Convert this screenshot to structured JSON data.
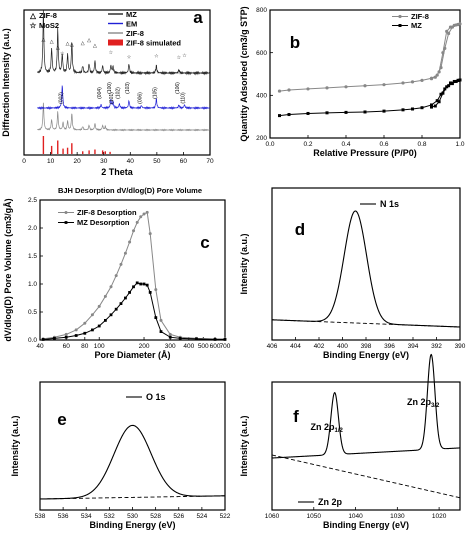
{
  "figure": {
    "panel_letters": [
      "a",
      "b",
      "c",
      "d",
      "e",
      "f"
    ]
  },
  "chart_data": [
    {
      "panel": "a",
      "type": "line",
      "xlabel": "2 Theta",
      "ylabel": "Diffraction Intensity (a.u.)",
      "xlim": [
        0,
        70
      ],
      "xticks": [
        "0",
        "10",
        "20",
        "30",
        "40",
        "50",
        "60",
        "70"
      ],
      "legend": [
        {
          "name": "MZ",
          "color": "#222222",
          "style": "line"
        },
        {
          "name": "EM",
          "color": "#1f1fd6",
          "style": "line"
        },
        {
          "name": "ZIF-8",
          "color": "#888888",
          "style": "line"
        },
        {
          "name": "ZIF-8 simulated",
          "color": "#e02020",
          "style": "fill"
        }
      ],
      "marker_legend": [
        {
          "symbol": "△",
          "name": "ZIF-8",
          "color": "#e02020"
        },
        {
          "symbol": "☆",
          "name": "MoS2",
          "color": "#000000"
        }
      ],
      "hkl_labels": [
        {
          "x": 14.4,
          "text": "(002)"
        },
        {
          "x": 29.0,
          "text": "(004)"
        },
        {
          "x": 32.7,
          "text": "(100)"
        },
        {
          "x": 33.5,
          "text": "(101)"
        },
        {
          "x": 35.9,
          "text": "(102)"
        },
        {
          "x": 39.5,
          "text": "(103)"
        },
        {
          "x": 44.2,
          "text": "(006)"
        },
        {
          "x": 49.8,
          "text": "(105)"
        },
        {
          "x": 58.3,
          "text": "(106)"
        },
        {
          "x": 60.4,
          "text": "(110)"
        }
      ],
      "simulated_peaks": [
        {
          "x": 7.3,
          "h": 1.0
        },
        {
          "x": 10.4,
          "h": 0.45
        },
        {
          "x": 12.7,
          "h": 0.75
        },
        {
          "x": 14.7,
          "h": 0.3
        },
        {
          "x": 16.4,
          "h": 0.35
        },
        {
          "x": 18.0,
          "h": 0.6
        },
        {
          "x": 22.1,
          "h": 0.15
        },
        {
          "x": 24.5,
          "h": 0.2
        },
        {
          "x": 26.7,
          "h": 0.25
        },
        {
          "x": 29.6,
          "h": 0.2
        },
        {
          "x": 30.6,
          "h": 0.15
        },
        {
          "x": 32.4,
          "h": 0.12
        }
      ],
      "series": [
        {
          "name": "ZIF-8",
          "peaks": [
            {
              "x": 7.3,
              "h": 0.9
            },
            {
              "x": 10.4,
              "h": 0.35
            },
            {
              "x": 12.7,
              "h": 0.6
            },
            {
              "x": 14.7,
              "h": 0.25
            },
            {
              "x": 16.4,
              "h": 0.3
            },
            {
              "x": 18.0,
              "h": 0.55
            },
            {
              "x": 22.1,
              "h": 0.12
            },
            {
              "x": 24.5,
              "h": 0.16
            },
            {
              "x": 26.7,
              "h": 0.22
            },
            {
              "x": 29.6,
              "h": 0.15
            },
            {
              "x": 30.6,
              "h": 0.12
            }
          ]
        },
        {
          "name": "EM",
          "peaks": [
            {
              "x": 14.4,
              "h": 0.55
            },
            {
              "x": 29.0,
              "h": 0.08
            },
            {
              "x": 32.7,
              "h": 0.2
            },
            {
              "x": 33.5,
              "h": 0.15
            },
            {
              "x": 35.9,
              "h": 0.1
            },
            {
              "x": 39.5,
              "h": 0.18
            },
            {
              "x": 44.2,
              "h": 0.06
            },
            {
              "x": 49.8,
              "h": 0.22
            },
            {
              "x": 58.3,
              "h": 0.07
            },
            {
              "x": 60.4,
              "h": 0.08
            }
          ]
        },
        {
          "name": "MZ",
          "peaks": [
            {
              "x": 7.3,
              "h": 1.0
            },
            {
              "x": 10.4,
              "h": 0.4
            },
            {
              "x": 12.7,
              "h": 0.7
            },
            {
              "x": 14.4,
              "h": 0.3
            },
            {
              "x": 16.4,
              "h": 0.3
            },
            {
              "x": 18.0,
              "h": 0.5
            },
            {
              "x": 22.1,
              "h": 0.12
            },
            {
              "x": 24.5,
              "h": 0.15
            },
            {
              "x": 26.7,
              "h": 0.2
            },
            {
              "x": 29.6,
              "h": 0.12
            },
            {
              "x": 32.7,
              "h": 0.12
            },
            {
              "x": 33.5,
              "h": 0.1
            },
            {
              "x": 39.5,
              "h": 0.15
            },
            {
              "x": 49.8,
              "h": 0.12
            },
            {
              "x": 58.3,
              "h": 0.05
            }
          ]
        }
      ]
    },
    {
      "panel": "b",
      "type": "line",
      "xlabel": "Relative Pressure (P/P0)",
      "ylabel": "Quantity Adsorbed (cm3/g STP)",
      "xlim": [
        0.0,
        1.0
      ],
      "ylim": [
        200,
        800
      ],
      "xticks": [
        "0.0",
        "0.2",
        "0.4",
        "0.6",
        "0.8",
        "1.0"
      ],
      "yticks": [
        "200",
        "400",
        "600",
        "800"
      ],
      "series": [
        {
          "name": "ZIF-8",
          "color": "#888888",
          "marker": "star",
          "x": [
            0.05,
            0.1,
            0.2,
            0.3,
            0.4,
            0.5,
            0.6,
            0.7,
            0.75,
            0.8,
            0.85,
            0.88,
            0.9,
            0.92,
            0.94,
            0.96,
            0.98,
            0.99,
            1.0
          ],
          "y": [
            420,
            425,
            430,
            435,
            440,
            445,
            450,
            458,
            463,
            470,
            480,
            495,
            530,
            620,
            690,
            720,
            730,
            732,
            735
          ],
          "desorption_x": [
            0.99,
            0.97,
            0.95,
            0.93,
            0.91,
            0.89,
            0.87,
            0.85
          ],
          "desorption_y": [
            732,
            728,
            720,
            700,
            600,
            510,
            485,
            478
          ]
        },
        {
          "name": "MZ",
          "color": "#000000",
          "marker": "square",
          "x": [
            0.05,
            0.1,
            0.2,
            0.3,
            0.4,
            0.5,
            0.6,
            0.7,
            0.75,
            0.8,
            0.85,
            0.88,
            0.9,
            0.92,
            0.94,
            0.96,
            0.98,
            0.99,
            1.0
          ],
          "y": [
            305,
            310,
            315,
            318,
            320,
            322,
            326,
            332,
            336,
            342,
            355,
            375,
            405,
            430,
            445,
            455,
            465,
            470,
            472
          ],
          "desorption_x": [
            0.99,
            0.97,
            0.95,
            0.93,
            0.91,
            0.89,
            0.87,
            0.85
          ],
          "desorption_y": [
            470,
            465,
            458,
            440,
            410,
            370,
            350,
            345
          ]
        }
      ]
    },
    {
      "panel": "c",
      "type": "line",
      "title": "BJH Desorption dV/dlog(D) Pore Volume",
      "xlabel": "Pore Diameter (Å)",
      "ylabel": "dV/dlog(D) Pore Volume (cm3/gÅ)",
      "xscale": "log",
      "xlim": [
        40,
        700
      ],
      "ylim": [
        0.0,
        2.5
      ],
      "xticks": [
        "40",
        "60",
        "80",
        "100",
        "200",
        "300",
        "400",
        "500",
        "600",
        "700"
      ],
      "yticks": [
        "0.0",
        "0.5",
        "1.0",
        "1.5",
        "2.0",
        "2.5"
      ],
      "series": [
        {
          "name": "ZIF-8 Desorption",
          "color": "#888888",
          "marker": "star",
          "x": [
            42,
            50,
            60,
            70,
            80,
            90,
            100,
            110,
            120,
            130,
            140,
            150,
            160,
            170,
            180,
            190,
            200,
            210,
            220,
            240,
            260,
            300,
            350,
            450,
            600,
            700
          ],
          "y": [
            0.02,
            0.05,
            0.1,
            0.18,
            0.3,
            0.45,
            0.6,
            0.78,
            0.95,
            1.15,
            1.35,
            1.55,
            1.75,
            1.95,
            2.1,
            2.2,
            2.25,
            2.28,
            1.9,
            0.9,
            0.35,
            0.1,
            0.05,
            0.03,
            0.02,
            0.02
          ]
        },
        {
          "name": "MZ Desorption",
          "color": "#000000",
          "marker": "square",
          "x": [
            42,
            50,
            60,
            70,
            80,
            90,
            100,
            110,
            120,
            130,
            140,
            150,
            160,
            170,
            180,
            190,
            200,
            210,
            220,
            240,
            260,
            300,
            350,
            450,
            600,
            700
          ],
          "y": [
            0.01,
            0.03,
            0.05,
            0.08,
            0.12,
            0.18,
            0.25,
            0.35,
            0.45,
            0.55,
            0.65,
            0.75,
            0.85,
            0.95,
            1.02,
            1.0,
            1.0,
            0.98,
            0.85,
            0.4,
            0.15,
            0.05,
            0.03,
            0.02,
            0.01,
            0.01
          ]
        }
      ]
    },
    {
      "panel": "d",
      "type": "line",
      "series_label": "N 1s",
      "xlabel": "Binding Energy (eV)",
      "ylabel": "Intensity (a.u.)",
      "xlim": [
        406,
        390
      ],
      "xticks": [
        "406",
        "404",
        "402",
        "400",
        "398",
        "396",
        "394",
        "392",
        "390"
      ],
      "peak_center": 398.9
    },
    {
      "panel": "e",
      "type": "line",
      "series_label": "O 1s",
      "xlabel": "Binding Energy (eV)",
      "ylabel": "Intensity (a.u.)",
      "xlim": [
        538,
        522
      ],
      "xticks": [
        "538",
        "536",
        "534",
        "532",
        "530",
        "528",
        "526",
        "524",
        "522"
      ],
      "peak_center": 530.0
    },
    {
      "panel": "f",
      "type": "line",
      "series_label": "Zn 2p",
      "xlabel": "Binding Energy (eV)",
      "ylabel": "Intensity (a.u.)",
      "xlim": [
        1060,
        1015
      ],
      "xticks": [
        "1060",
        "1050",
        "1040",
        "1030",
        "1020"
      ],
      "peaks": [
        {
          "label": "Zn 2p",
          "sub": "1/2",
          "energy": 1045.0
        },
        {
          "label": "Zn 2p",
          "sub": "3/2",
          "energy": 1021.9
        }
      ]
    }
  ]
}
